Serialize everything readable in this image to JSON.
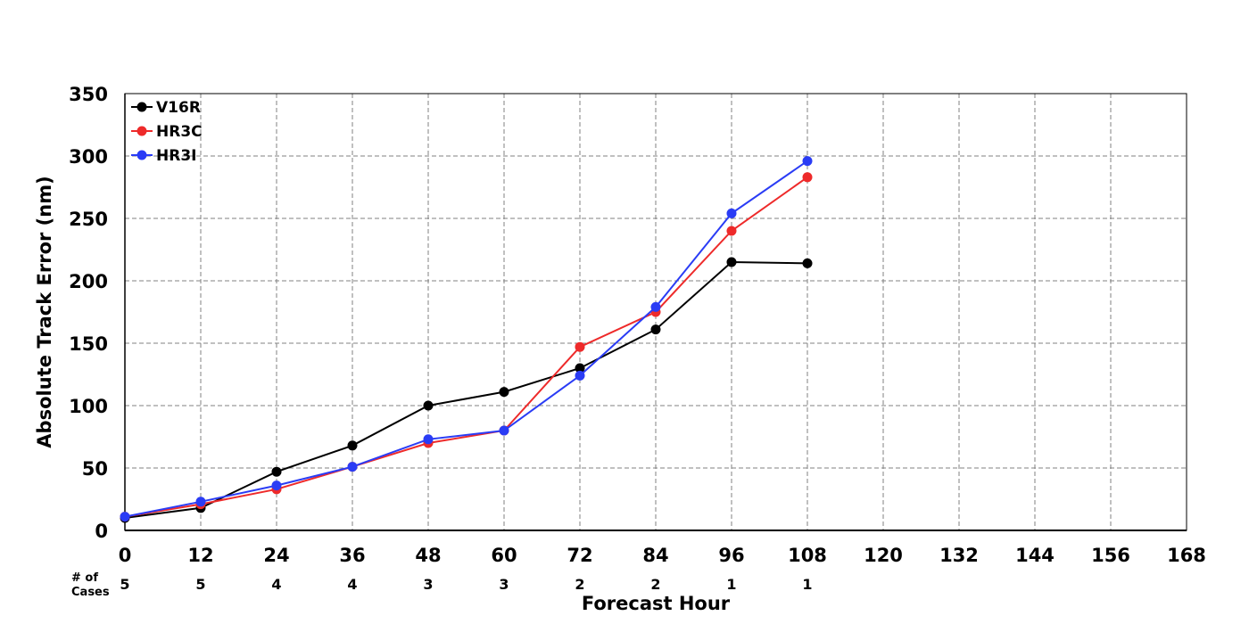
{
  "chart_data": {
    "type": "line",
    "xlabel": "Forecast Hour",
    "ylabel": "Absolute Track Error (nm)",
    "xlim": [
      0,
      168
    ],
    "ylim": [
      0,
      350
    ],
    "x_ticks": [
      0,
      12,
      24,
      36,
      48,
      60,
      72,
      84,
      96,
      108,
      120,
      132,
      144,
      156,
      168
    ],
    "y_ticks": [
      0,
      50,
      100,
      150,
      200,
      250,
      300,
      350
    ],
    "grid": true,
    "legend_position": "top-left",
    "x": [
      0,
      12,
      24,
      36,
      48,
      60,
      72,
      84,
      96,
      108
    ],
    "series": [
      {
        "name": "V16R",
        "color": "#000000",
        "values": [
          10,
          18,
          47,
          68,
          100,
          111,
          130,
          161,
          215,
          214
        ]
      },
      {
        "name": "HR3C",
        "color": "#ee2a2a",
        "values": [
          11,
          21,
          33,
          51,
          70,
          80,
          147,
          175,
          240,
          283
        ]
      },
      {
        "name": "HR3I",
        "color": "#2a3cf5",
        "values": [
          11,
          23,
          36,
          51,
          73,
          80,
          124,
          179,
          254,
          296
        ]
      }
    ],
    "cases": {
      "header_line1": "# of",
      "header_line2": "Cases",
      "hours": [
        0,
        12,
        24,
        36,
        48,
        60,
        72,
        84,
        96,
        108
      ],
      "counts": [
        "5",
        "5",
        "4",
        "4",
        "3",
        "3",
        "2",
        "2",
        "1",
        "1"
      ]
    }
  }
}
